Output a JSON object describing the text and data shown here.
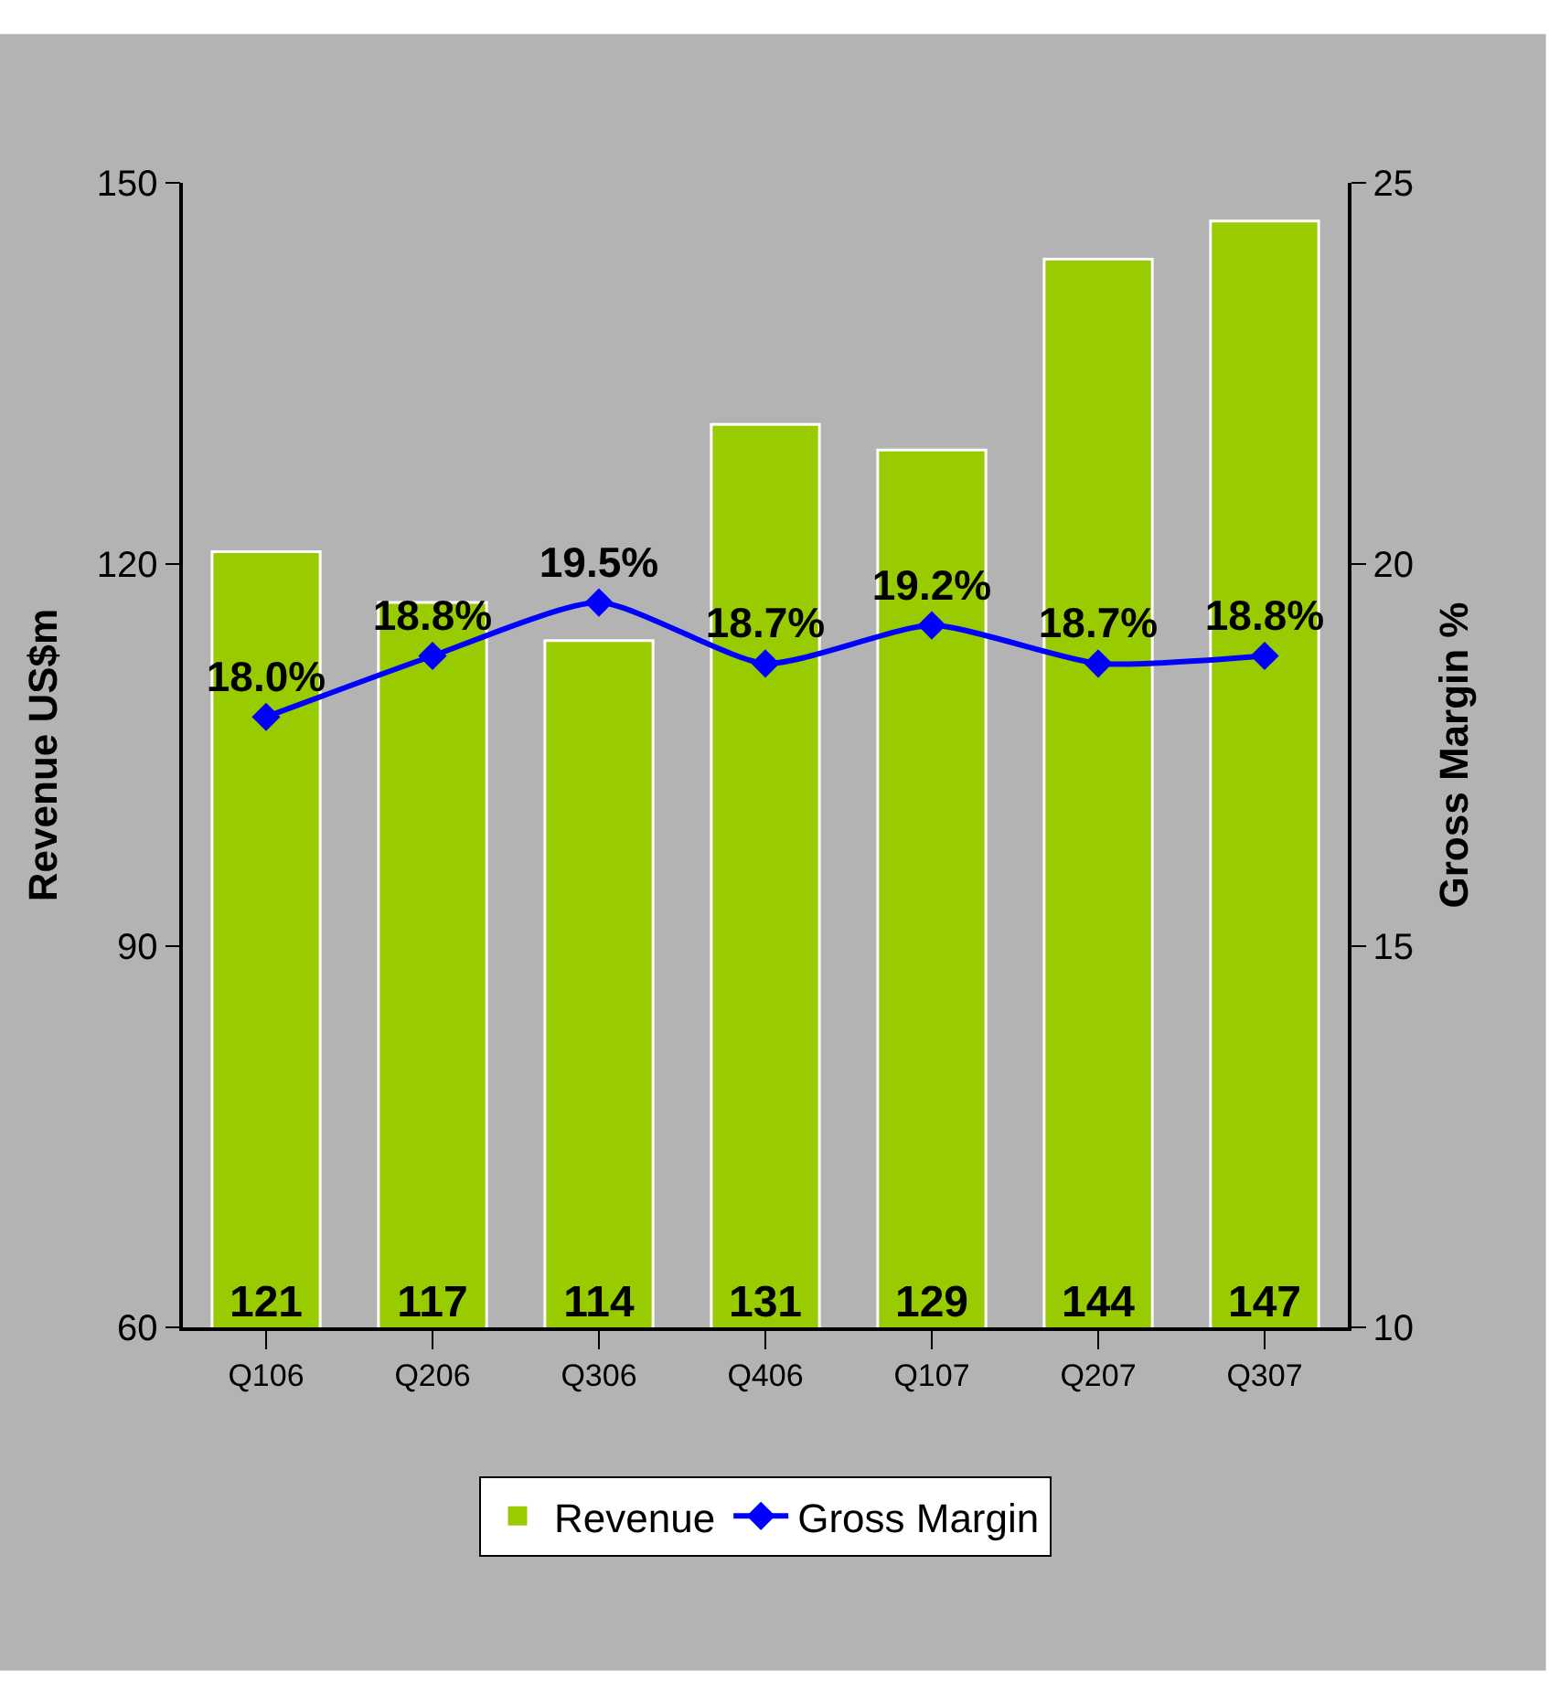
{
  "chart_data": {
    "type": "bar",
    "ylabel": "Revenue US$m",
    "y2label": "Gross Margin %",
    "categories": [
      "Q106",
      "Q206",
      "Q306",
      "Q406",
      "Q107",
      "Q207",
      "Q307"
    ],
    "series": [
      {
        "name": "Revenue",
        "color": "#99cc00",
        "values": [
          121,
          117,
          114,
          131,
          129,
          144,
          147
        ],
        "value_labels": [
          "121",
          "117",
          "114",
          "131",
          "129",
          "144",
          "147"
        ]
      },
      {
        "name": "Gross Margin",
        "type": "line",
        "axis": "y2",
        "color": "#0000ff",
        "marker": "diamond",
        "line_style": "solid",
        "values": [
          18.0,
          18.8,
          19.5,
          18.7,
          19.2,
          18.7,
          18.8
        ],
        "value_labels": [
          "18.0%",
          "18.8%",
          "19.5%",
          "18.7%",
          "19.2%",
          "18.7%",
          "18.8%"
        ]
      }
    ],
    "ylim": [
      60,
      150
    ],
    "yticks": [
      60,
      90,
      120,
      150
    ],
    "y2lim": [
      10,
      25
    ],
    "y2ticks": [
      10,
      15,
      20,
      25
    ],
    "grid": false,
    "legend": "bottom"
  }
}
